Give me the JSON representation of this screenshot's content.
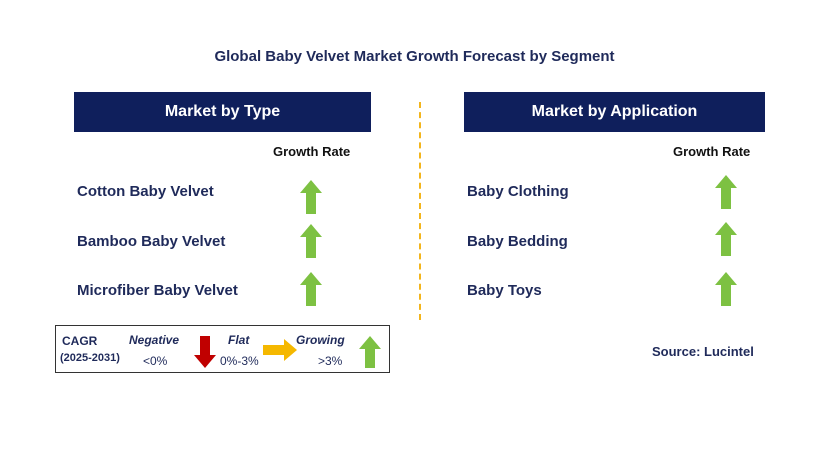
{
  "title": "Global Baby Velvet Market Growth Forecast by Segment",
  "colors": {
    "header_bg": "#0f1f5c",
    "growing": "#7dc142",
    "negative": "#c00000",
    "flat": "#f5b800",
    "divider": "#f3b51c"
  },
  "type_panel": {
    "header": "Market by Type",
    "growth_label": "Growth Rate",
    "items": [
      {
        "label": "Cotton Baby Velvet",
        "trend": "growing"
      },
      {
        "label": "Bamboo Baby Velvet",
        "trend": "growing"
      },
      {
        "label": "Microfiber Baby Velvet",
        "trend": "growing"
      }
    ]
  },
  "application_panel": {
    "header": "Market by Application",
    "growth_label": "Growth Rate",
    "items": [
      {
        "label": "Baby Clothing",
        "trend": "growing"
      },
      {
        "label": "Baby Bedding",
        "trend": "growing"
      },
      {
        "label": "Baby Toys",
        "trend": "growing"
      }
    ]
  },
  "legend": {
    "cagr_label": "CAGR",
    "period": "(2025-2031)",
    "negative": {
      "label": "Negative",
      "range": "<0%",
      "icon": "down-arrow-icon"
    },
    "flat": {
      "label": "Flat",
      "range": "0%-3%",
      "icon": "right-arrow-icon"
    },
    "growing": {
      "label": "Growing",
      "range": ">3%",
      "icon": "up-arrow-icon"
    }
  },
  "source": "Source: Lucintel"
}
